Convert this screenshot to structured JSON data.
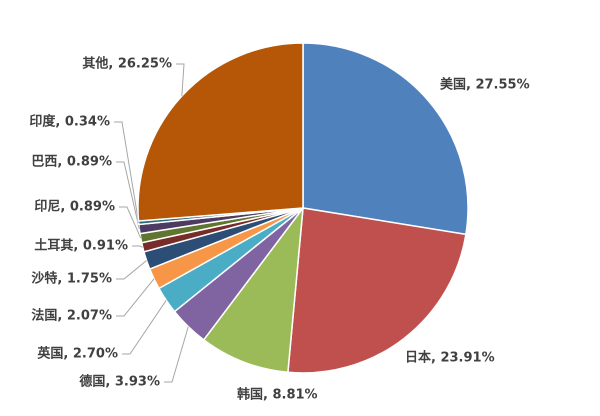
{
  "chart_data": {
    "type": "pie",
    "values": [
      27.55,
      23.91,
      8.81,
      3.93,
      2.7,
      2.07,
      1.75,
      0.91,
      0.89,
      0.89,
      0.34,
      26.25
    ],
    "value_labels": [
      "美国, 27.55%",
      "日本, 23.91%",
      "韩国, 8.81%",
      "德国, 3.93%",
      "英国, 2.70%",
      "法国, 2.07%",
      "沙特, 1.75%",
      "土耳其, 0.91%",
      "印尼, 0.89%",
      "巴西, 0.89%",
      "印度, 0.34%",
      "其他, 26.25%"
    ],
    "colors": [
      "#4f81bd",
      "#c0504d",
      "#9bbb59",
      "#8064a2",
      "#4bacc6",
      "#f79646",
      "#2c4d75",
      "#772c2a",
      "#5f7530",
      "#4d3b62",
      "#276a7c",
      "#b65708"
    ]
  }
}
